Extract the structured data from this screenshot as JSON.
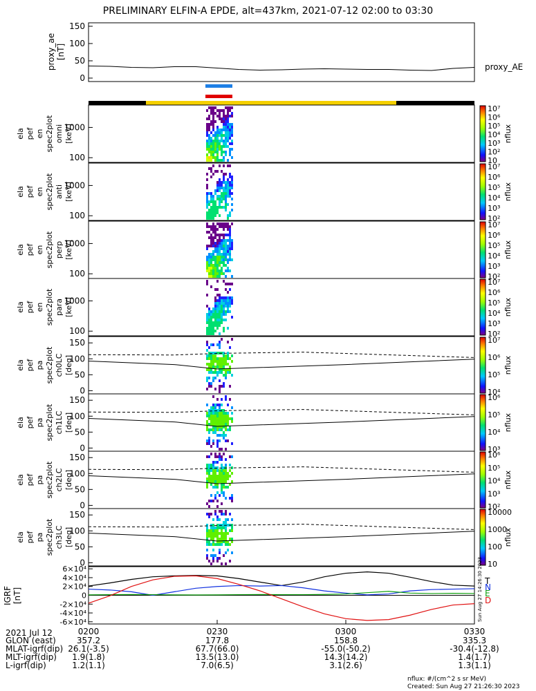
{
  "title": "PRELIMINARY ELFIN-A EPDE, alt=437km, 2021-07-12 02:00 to 03:30",
  "colors": {
    "black_bar": "#000000",
    "gold_bar": "#f5d000",
    "blue_bar": "#1e7fe6",
    "red_bar": "#e00000",
    "bfield_T": "#000000",
    "bfield_N": "#1030e0",
    "bfield_E": "#10a010",
    "bfield_D": "#e01010"
  },
  "time_axis": {
    "ticks": [
      "0200",
      "0230",
      "0300",
      "0330"
    ],
    "date_label": "2021 Jul 12"
  },
  "ephemeris": [
    {
      "label": "GLON (east)",
      "values": [
        "357.2",
        "177.8",
        "158.8",
        "335.3"
      ]
    },
    {
      "label": "MLAT-igrf(dip)",
      "values": [
        "26.1(-3.5)",
        "67.7(66.0)",
        "-55.0(-50.2)",
        "-30.4(-12.8)"
      ]
    },
    {
      "label": "MLT-igrf(dip)",
      "values": [
        "1.9(1.8)",
        "13.5(13.0)",
        "14.3(14.2)",
        "1.4(1.7)"
      ]
    },
    {
      "label": "L-igrf(dip)",
      "values": [
        "1.2(1.1)",
        "7.0(6.5)",
        "3.1(2.6)",
        "1.3(1.1)"
      ]
    }
  ],
  "footer": {
    "units": "nflux: #/(cm^2 s sr MeV)",
    "created": "Created: Sun Aug 27 21:26:30 2023"
  },
  "vertical_stamp": "Sun Aug 27 14:26:30 2023",
  "colorbar_label": "nflux",
  "chart_data": [
    {
      "type": "line",
      "panel": "proxy_ae",
      "ylabel": [
        "proxy_ae",
        "[nT]"
      ],
      "ylim": [
        -10,
        160
      ],
      "yticks": [
        "0",
        "50",
        "100",
        "150"
      ],
      "series": [
        {
          "name": "proxy_AE",
          "x": [
            0,
            5,
            10,
            15,
            20,
            25,
            30,
            35,
            40,
            45,
            50,
            55,
            60,
            65,
            70,
            75,
            80,
            85,
            90
          ],
          "y": [
            35,
            34,
            31,
            30,
            33,
            33,
            29,
            25,
            23,
            24,
            26,
            27,
            26,
            25,
            25,
            23,
            22,
            28,
            31
          ]
        }
      ]
    },
    {
      "type": "heatmap",
      "panel": "omni",
      "ylabel": [
        "ela",
        "pef",
        "en",
        "spec2plot",
        "omni",
        "[keV]"
      ],
      "yticks": [
        "100",
        "1000"
      ],
      "colorbar_ticks": [
        "10",
        "10²",
        "10³",
        "10⁴",
        "10⁵",
        "10⁶",
        "10⁷"
      ]
    },
    {
      "type": "heatmap",
      "panel": "anti",
      "ylabel": [
        "ela",
        "pef",
        "en",
        "spec2plot",
        "anti",
        "[keV]"
      ],
      "yticks": [
        "100",
        "1000"
      ],
      "colorbar_ticks": [
        "10²",
        "10³",
        "10⁴",
        "10⁵",
        "10⁶",
        "10⁷"
      ]
    },
    {
      "type": "heatmap",
      "panel": "perp",
      "ylabel": [
        "ela",
        "pef",
        "en",
        "spec2plot",
        "perp",
        "[keV]"
      ],
      "yticks": [
        "100",
        "1000"
      ],
      "colorbar_ticks": [
        "10²",
        "10³",
        "10⁴",
        "10⁵",
        "10⁶",
        "10⁷"
      ]
    },
    {
      "type": "heatmap",
      "panel": "para",
      "ylabel": [
        "ela",
        "pef",
        "en",
        "spec2plot",
        "para",
        "[keV]"
      ],
      "yticks": [
        "100",
        "1000"
      ],
      "colorbar_ticks": [
        "10²",
        "10³",
        "10⁴",
        "10⁵",
        "10⁶",
        "10⁷"
      ]
    },
    {
      "type": "heatmap",
      "panel": "ch0LC",
      "ylabel": [
        "ela",
        "pef",
        "pa",
        "spec2plot",
        "ch0LC",
        "[deg]"
      ],
      "yticks": [
        "0",
        "50",
        "100",
        "150"
      ],
      "colorbar_ticks": [
        "10⁴",
        "10⁵",
        "10⁶",
        "10⁷"
      ]
    },
    {
      "type": "heatmap",
      "panel": "ch1LC",
      "ylabel": [
        "ela",
        "pef",
        "pa",
        "spec2plot",
        "ch1LC",
        "[deg]"
      ],
      "yticks": [
        "0",
        "50",
        "100",
        "150"
      ],
      "colorbar_ticks": [
        "10³",
        "10⁴",
        "10⁵",
        "10⁶"
      ]
    },
    {
      "type": "heatmap",
      "panel": "ch2LC",
      "ylabel": [
        "ela",
        "pef",
        "pa",
        "spec2plot",
        "ch2LC",
        "[deg]"
      ],
      "yticks": [
        "0",
        "50",
        "100",
        "150"
      ],
      "colorbar_ticks": [
        "10²",
        "10³",
        "10⁴",
        "10⁵",
        "10⁶"
      ]
    },
    {
      "type": "heatmap",
      "panel": "ch3LC",
      "ylabel": [
        "ela",
        "pef",
        "pa",
        "spec2plot",
        "ch3LC",
        "[deg]"
      ],
      "yticks": [
        "0",
        "50",
        "100",
        "150"
      ],
      "colorbar_ticks": [
        "10",
        "100",
        "1000",
        "10000"
      ]
    },
    {
      "type": "line",
      "panel": "bfield",
      "ylabel": [
        "IGRF",
        "[nT]"
      ],
      "ylim": [
        -65000,
        65000
      ],
      "yticks": [
        "-6×10⁴",
        "-4×10⁴",
        "-2×10⁴",
        "0",
        "2×10⁴",
        "4×10⁴",
        "6×10⁴"
      ],
      "series": [
        {
          "name": "T",
          "x": [
            0,
            5,
            10,
            15,
            20,
            25,
            30,
            35,
            40,
            45,
            50,
            55,
            60,
            65,
            70,
            75,
            80,
            85,
            90
          ],
          "y": [
            21000,
            28000,
            36000,
            42000,
            44000,
            45000,
            44000,
            38000,
            30000,
            22000,
            30000,
            42000,
            50000,
            53000,
            50000,
            41000,
            31000,
            23000,
            21000
          ]
        },
        {
          "name": "N",
          "x": [
            0,
            5,
            10,
            15,
            20,
            25,
            30,
            35,
            40,
            45,
            50,
            55,
            60,
            65,
            70,
            75,
            80,
            85,
            90
          ],
          "y": [
            14000,
            12000,
            8000,
            0,
            8000,
            16000,
            20000,
            22000,
            21000,
            22000,
            17000,
            10000,
            5000,
            1000,
            3000,
            10000,
            13000,
            14000,
            15000
          ]
        },
        {
          "name": "E",
          "x": [
            0,
            5,
            10,
            15,
            20,
            25,
            30,
            35,
            40,
            45,
            50,
            55,
            60,
            65,
            70,
            75,
            80,
            85,
            90
          ],
          "y": [
            1000,
            1500,
            1800,
            1500,
            1000,
            800,
            1000,
            1500,
            1800,
            1500,
            1500,
            2000,
            3000,
            6000,
            9000,
            5000,
            4000,
            4500,
            4000
          ]
        },
        {
          "name": "D",
          "x": [
            0,
            5,
            10,
            15,
            20,
            25,
            30,
            35,
            40,
            45,
            50,
            55,
            60,
            65,
            70,
            75,
            80,
            85,
            90
          ],
          "y": [
            -18000,
            -1000,
            20000,
            35000,
            43000,
            44000,
            38000,
            25000,
            10000,
            -8000,
            -26000,
            -42000,
            -53000,
            -57000,
            -55000,
            -45000,
            -32000,
            -22000,
            -19000
          ]
        }
      ]
    }
  ]
}
